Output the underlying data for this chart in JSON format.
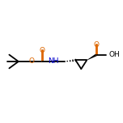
{
  "background": "#ffffff",
  "atom_color": "#000000",
  "oxygen_color": "#dd6600",
  "nitrogen_color": "#0000cc",
  "bond_color": "#000000",
  "figsize": [
    1.52,
    1.52
  ],
  "dpi": 100,
  "xlim": [
    -0.5,
    9.5
  ],
  "ylim": [
    0.5,
    5.5
  ]
}
